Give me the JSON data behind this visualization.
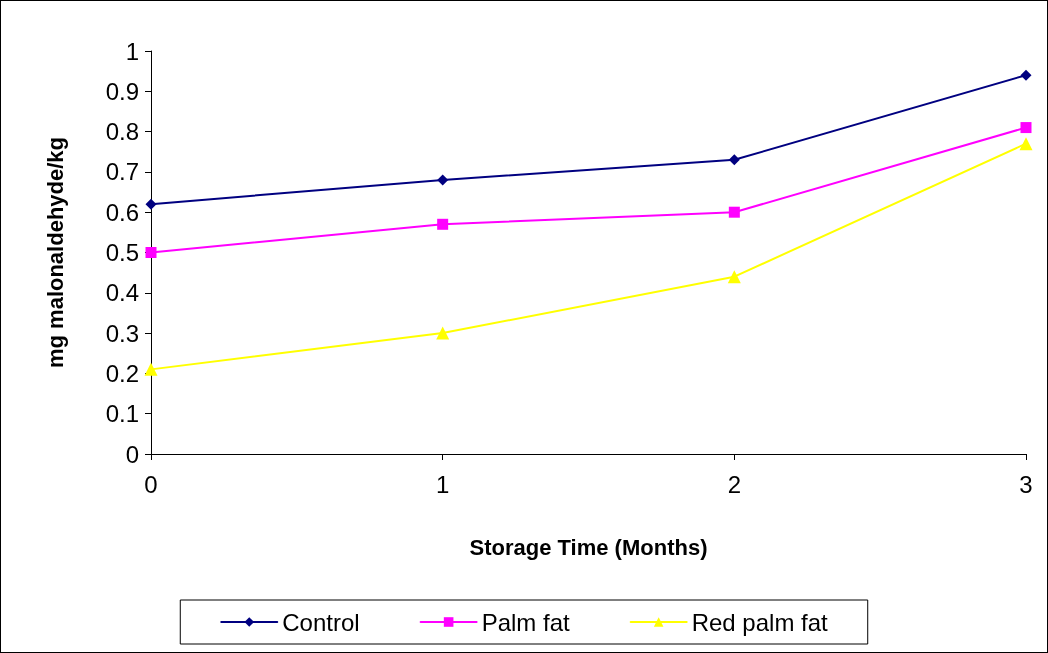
{
  "chart_data": {
    "type": "line",
    "xlabel": "Storage Time (Months)",
    "ylabel": "mg malonaldehyde/kg",
    "x": [
      0,
      1,
      2,
      3
    ],
    "series": [
      {
        "name": "Control",
        "color": "#000080",
        "marker": "diamond",
        "values": [
          0.62,
          0.68,
          0.73,
          0.94
        ]
      },
      {
        "name": "Palm fat",
        "color": "#ff00ff",
        "marker": "square",
        "values": [
          0.5,
          0.57,
          0.6,
          0.81
        ]
      },
      {
        "name": "Red palm fat",
        "color": "#ffff00",
        "marker": "triangle",
        "values": [
          0.21,
          0.3,
          0.44,
          0.77
        ]
      }
    ],
    "xlim": [
      0,
      3
    ],
    "xticks": [
      0,
      1,
      2,
      3
    ],
    "ylim": [
      0,
      1
    ],
    "yticks": [
      0,
      0.1,
      0.2,
      0.3,
      0.4,
      0.5,
      0.6,
      0.7,
      0.8,
      0.9,
      1
    ],
    "grid": false,
    "legend": "bottom",
    "line_style": "solid"
  }
}
